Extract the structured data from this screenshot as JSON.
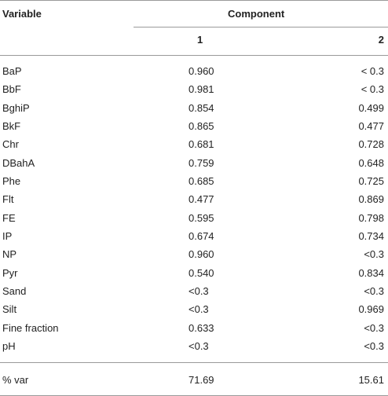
{
  "table": {
    "header": {
      "variable": "Variable",
      "component": "Component",
      "columns": [
        "1",
        "2"
      ]
    },
    "rows": [
      [
        "BaP",
        "0.960",
        "< 0.3"
      ],
      [
        "BbF",
        "0.981",
        "< 0.3"
      ],
      [
        "BghiP",
        "0.854",
        "0.499"
      ],
      [
        "BkF",
        "0.865",
        "0.477"
      ],
      [
        "Chr",
        "0.681",
        "0.728"
      ],
      [
        "DBahA",
        "0.759",
        "0.648"
      ],
      [
        "Phe",
        "0.685",
        "0.725"
      ],
      [
        "Flt",
        "0.477",
        "0.869"
      ],
      [
        "FE",
        "0.595",
        "0.798"
      ],
      [
        "IP",
        "0.674",
        "0.734"
      ],
      [
        "NP",
        "0.960",
        "<0.3"
      ],
      [
        "Pyr",
        "0.540",
        "0.834"
      ],
      [
        "Sand",
        "<0.3",
        "<0.3"
      ],
      [
        "Silt",
        "<0.3",
        "0.969"
      ],
      [
        "Fine fraction",
        "0.633",
        "<0.3"
      ],
      [
        "pH",
        "<0.3",
        "<0.3"
      ]
    ],
    "footer": [
      "% var",
      "71.69",
      "15.61"
    ]
  }
}
